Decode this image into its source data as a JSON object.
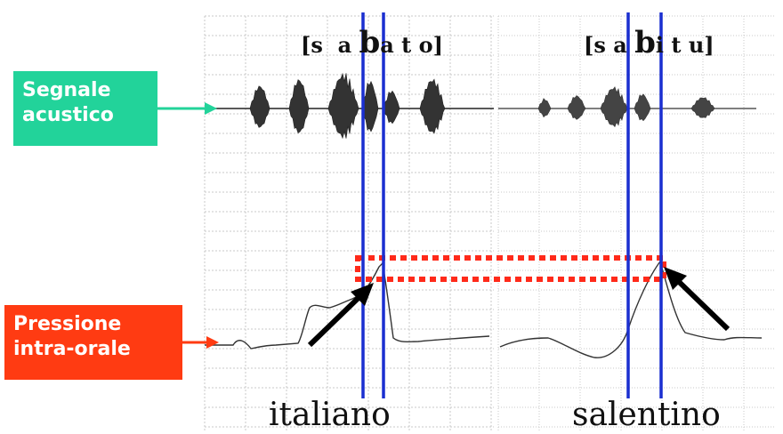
{
  "labels": {
    "acoustic_line1": "Segnale",
    "acoustic_line2": "acustico",
    "pressure_line1": "Pressione",
    "pressure_line2": "intra-orale"
  },
  "transcriptions": {
    "italiano": {
      "open": "[s  a ",
      "big": "b",
      "close": "a t o]"
    },
    "salentino": {
      "open": "[s a ",
      "big": "b",
      "close": "i t u]"
    }
  },
  "languages": {
    "italiano": "italiano",
    "salentino": "salentino"
  },
  "colors": {
    "acoustic_label": "#22d39a",
    "pressure_label": "#ff3b12",
    "marker_lines": "#1a2fd0",
    "pressure_band": "#ff2a1a",
    "arrows": "#000000",
    "grid": "#c8c8c8"
  }
}
